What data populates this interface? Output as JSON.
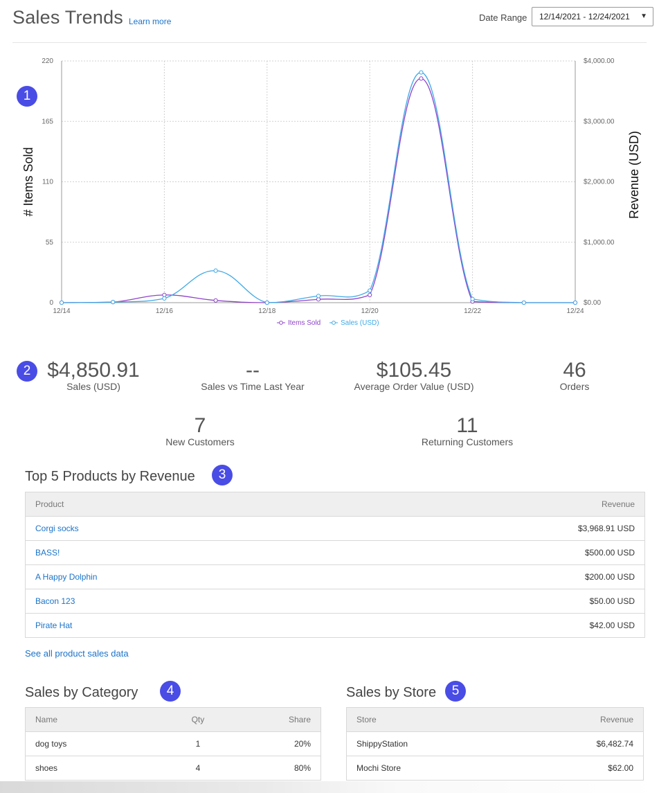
{
  "header": {
    "title": "Sales Trends",
    "learn_more": "Learn more",
    "date_range_label": "Date Range",
    "date_range_value": "12/14/2021 - 12/24/2021"
  },
  "badges": [
    "1",
    "2",
    "3",
    "4",
    "5"
  ],
  "chart_data": {
    "type": "line",
    "x": [
      "12/14",
      "12/15",
      "12/16",
      "12/17",
      "12/18",
      "12/19",
      "12/20",
      "12/21",
      "12/22",
      "12/23",
      "12/24"
    ],
    "x_tick_labels": [
      "12/14",
      "12/16",
      "12/18",
      "12/20",
      "12/22",
      "12/24"
    ],
    "ylabel_left": "# Items Sold",
    "ylabel_right": "Revenue (USD)",
    "ylim_left": [
      0,
      220
    ],
    "ylim_right": [
      0,
      4000
    ],
    "y_ticks_left": [
      "0",
      "55",
      "110",
      "165",
      "220"
    ],
    "y_ticks_right": [
      "$0.00",
      "$1,000.00",
      "$2,000.00",
      "$3,000.00",
      "$4,000.00"
    ],
    "grid": true,
    "legend_position": "bottom",
    "series": [
      {
        "name": "Items Sold",
        "axis": "left",
        "color": "#8e44c9",
        "values": [
          0,
          0.5,
          7,
          2,
          0,
          3,
          7,
          204,
          1,
          0,
          0
        ]
      },
      {
        "name": "Sales (USD)",
        "axis": "right",
        "color": "#3fa9e6",
        "values": [
          0,
          10,
          70,
          530,
          0,
          110,
          200,
          3810,
          60,
          0,
          0
        ]
      }
    ]
  },
  "stats": {
    "sales": {
      "value": "$4,850.91",
      "label": "Sales (USD)"
    },
    "vs_last_year": {
      "value": "--",
      "label": "Sales vs Time Last Year"
    },
    "avg_order": {
      "value": "$105.45",
      "label": "Average Order Value (USD)"
    },
    "orders": {
      "value": "46",
      "label": "Orders"
    },
    "new_customers": {
      "value": "7",
      "label": "New Customers"
    },
    "returning_customers": {
      "value": "11",
      "label": "Returning Customers"
    }
  },
  "top_products": {
    "title": "Top 5 Products by Revenue",
    "headers": {
      "product": "Product",
      "revenue": "Revenue"
    },
    "rows": [
      {
        "product": "Corgi socks",
        "revenue": "$3,968.91 USD"
      },
      {
        "product": "BASS!",
        "revenue": "$500.00 USD"
      },
      {
        "product": "A Happy Dolphin",
        "revenue": "$200.00 USD"
      },
      {
        "product": "Bacon 123",
        "revenue": "$50.00 USD"
      },
      {
        "product": "Pirate Hat",
        "revenue": "$42.00 USD"
      }
    ],
    "see_all": "See all product sales data"
  },
  "categories": {
    "title": "Sales by Category",
    "headers": {
      "name": "Name",
      "qty": "Qty",
      "share": "Share"
    },
    "rows": [
      {
        "name": "dog toys",
        "qty": "1",
        "share": "20%"
      },
      {
        "name": "shoes",
        "qty": "4",
        "share": "80%"
      }
    ]
  },
  "stores": {
    "title": "Sales by Store",
    "headers": {
      "store": "Store",
      "revenue": "Revenue"
    },
    "rows": [
      {
        "store": "ShippyStation",
        "revenue": "$6,482.74"
      },
      {
        "store": "Mochi Store",
        "revenue": "$62.00"
      }
    ]
  }
}
